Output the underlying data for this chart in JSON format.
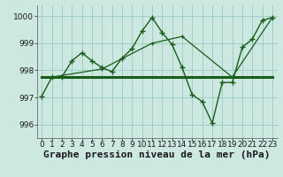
{
  "xlabel": "Graphe pression niveau de la mer (hPa)",
  "ylim": [
    995.5,
    1000.4
  ],
  "xlim": [
    -0.5,
    23.5
  ],
  "yticks": [
    996,
    997,
    998,
    999,
    1000
  ],
  "xticks": [
    0,
    1,
    2,
    3,
    4,
    5,
    6,
    7,
    8,
    9,
    10,
    11,
    12,
    13,
    14,
    15,
    16,
    17,
    18,
    19,
    20,
    21,
    22,
    23
  ],
  "bg_color": "#cce8e0",
  "grid_color": "#9ecfc4",
  "line_color": "#1a5c1a",
  "line1_x": [
    0,
    1,
    2,
    3,
    4,
    5,
    6,
    7,
    8,
    9,
    10,
    11,
    12,
    13,
    14,
    15,
    16,
    17,
    18,
    19,
    20,
    21,
    22,
    23
  ],
  "line1_y": [
    997.05,
    997.75,
    997.75,
    998.35,
    998.65,
    998.35,
    998.1,
    997.95,
    998.45,
    998.8,
    999.45,
    999.95,
    999.4,
    998.95,
    998.1,
    997.1,
    996.85,
    996.05,
    997.55,
    997.55,
    998.85,
    999.15,
    999.85,
    999.95
  ],
  "line2_x": [
    0,
    23
  ],
  "line2_y": [
    997.75,
    997.75
  ],
  "line3_x": [
    1,
    6,
    11,
    14,
    19,
    23
  ],
  "line3_y": [
    997.75,
    998.05,
    999.0,
    999.25,
    997.75,
    999.95
  ],
  "tick_fontsize": 6.5,
  "xlabel_fontsize": 8
}
